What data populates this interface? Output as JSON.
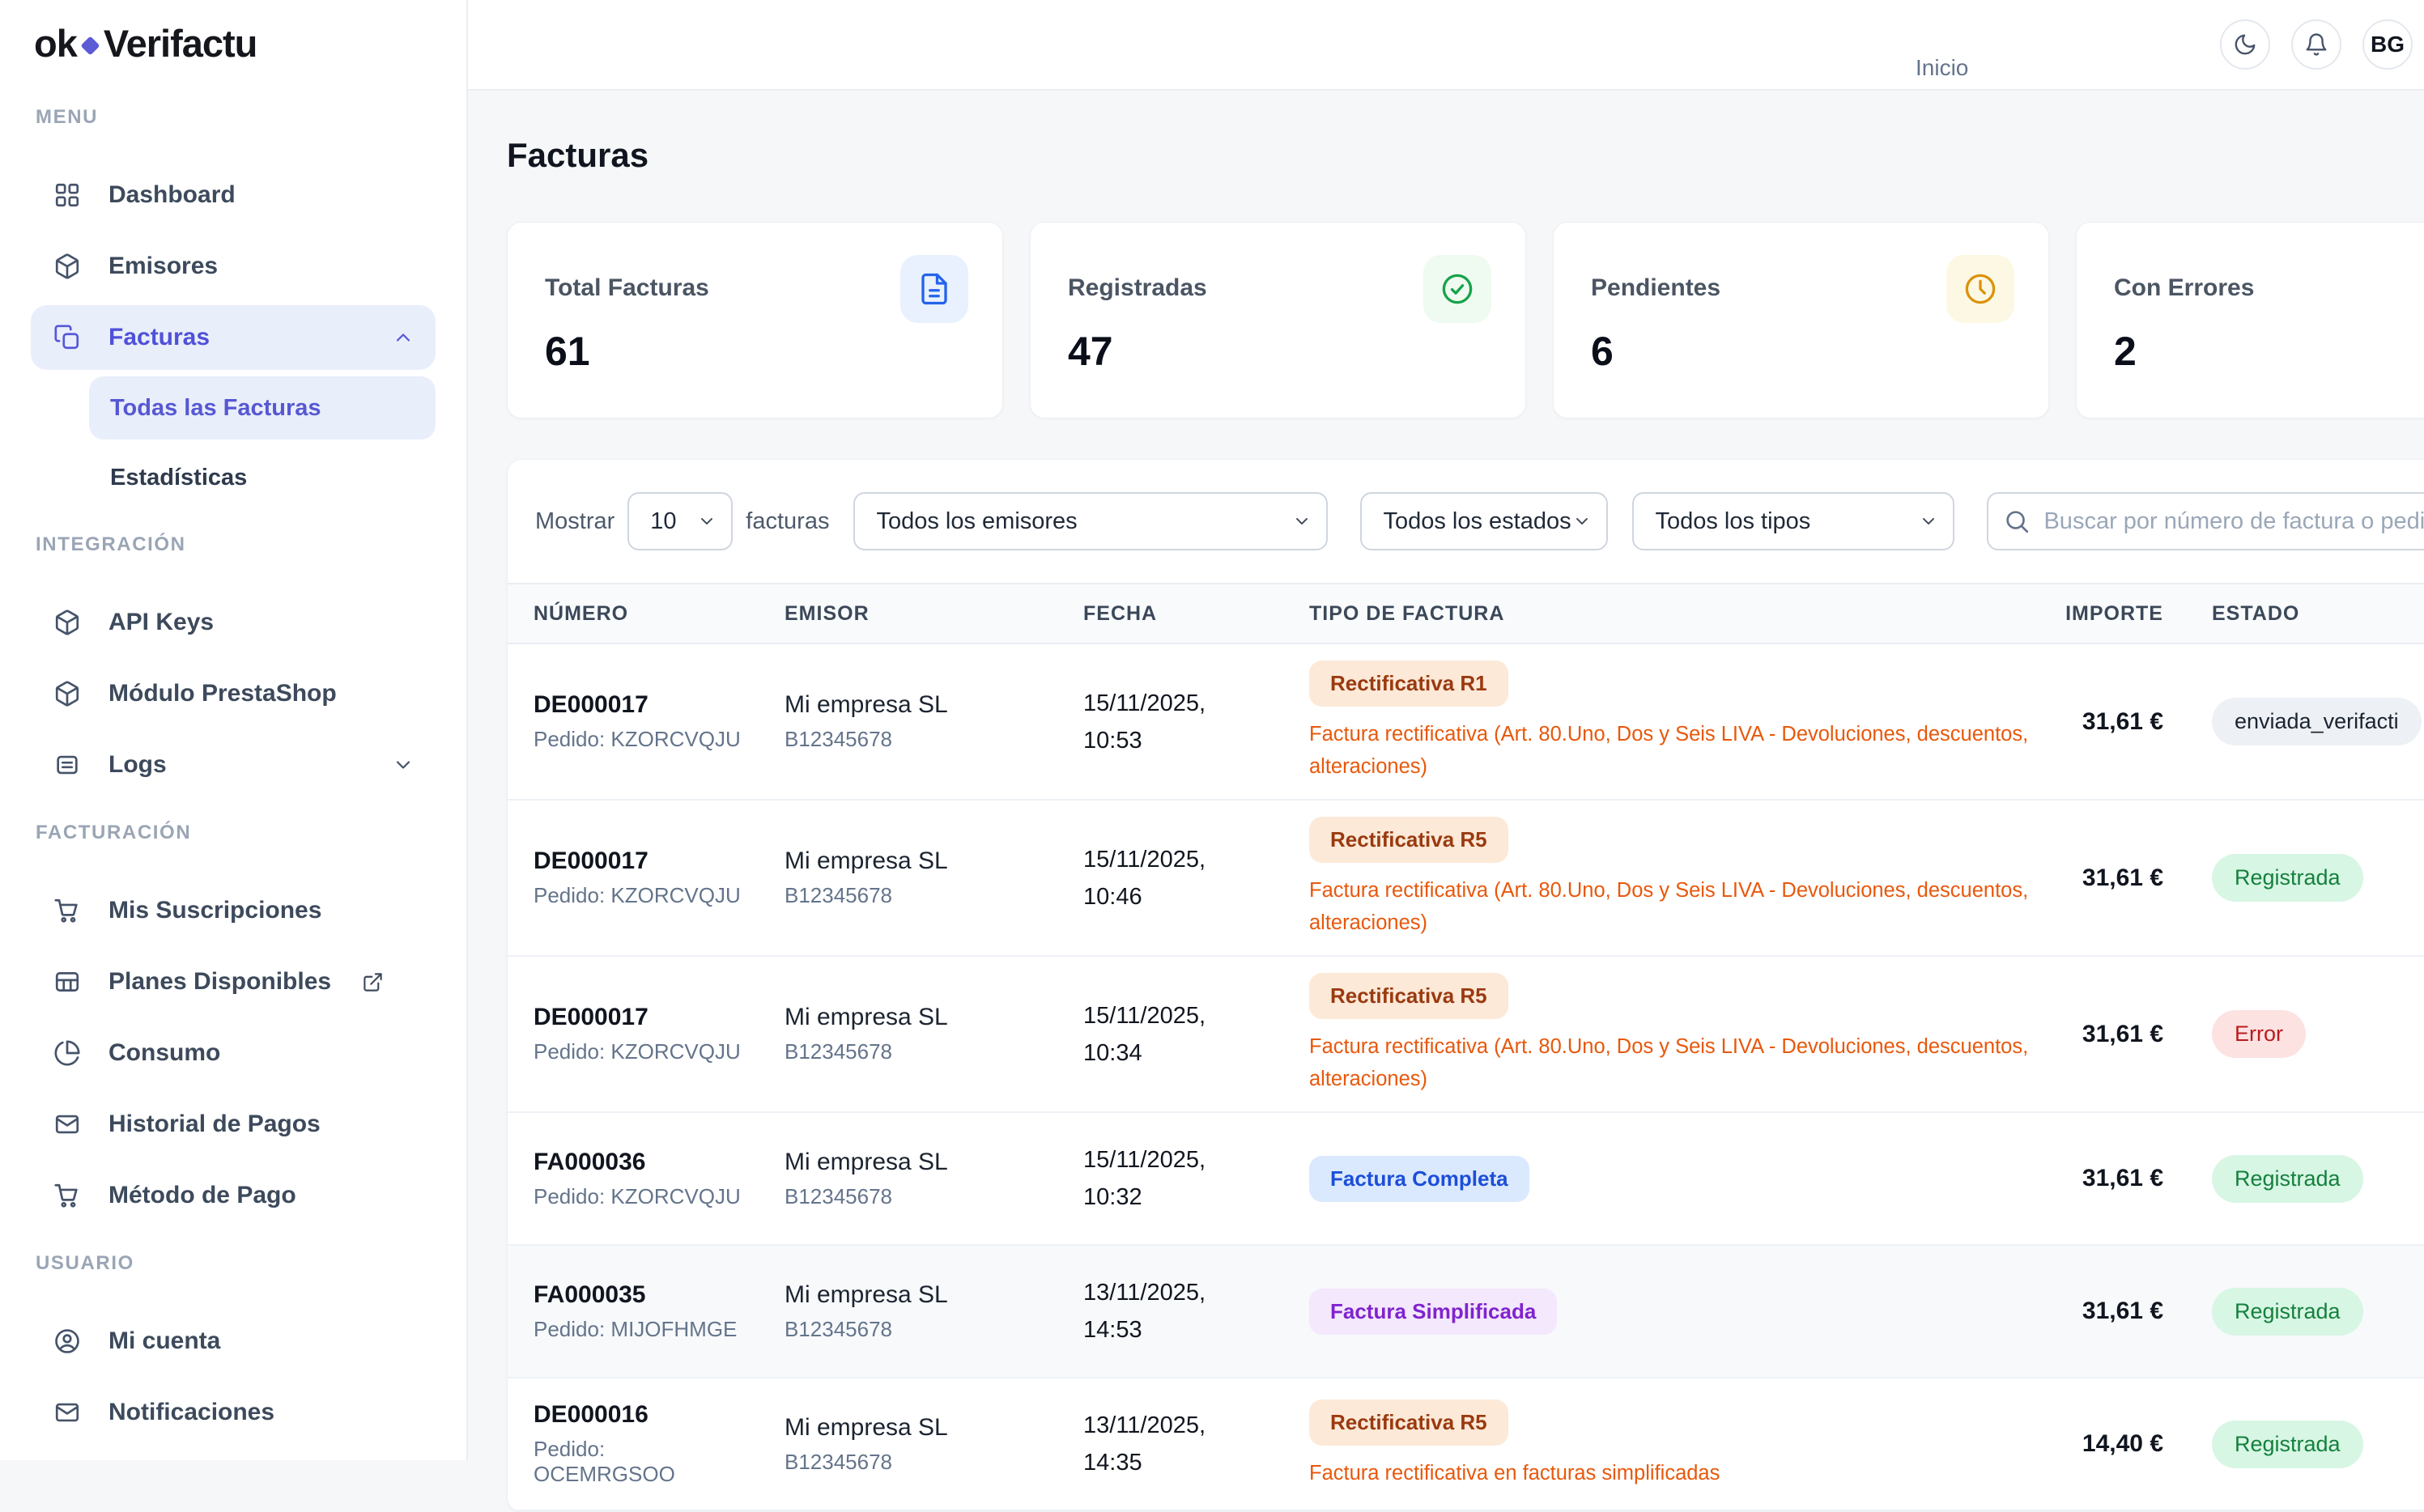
{
  "brand": {
    "logo_ok": "ok",
    "logo_rest": "Verifactu"
  },
  "header": {
    "breadcrumb": "Inicio",
    "avatar": "BG"
  },
  "page": {
    "title": "Facturas"
  },
  "theme": {
    "accent": "#5558d9",
    "sidebar_active_bg": "#e9eefb",
    "badge_variants": {
      "orange": {
        "bg": "#fce9d8",
        "fg": "#9a3a10"
      },
      "blue": {
        "bg": "#dbe9fe",
        "fg": "#1d4ed8"
      },
      "purple": {
        "bg": "#f4e8fd",
        "fg": "#8023ce"
      },
      "neutral": {
        "bg": "#edf0f5",
        "fg": "#1b2430"
      },
      "green": {
        "bg": "#d7f6e4",
        "fg": "#15803d"
      },
      "red": {
        "bg": "#fde2e2",
        "fg": "#b91c1c"
      }
    }
  },
  "sidebar": {
    "sections": [
      {
        "label": "MENU",
        "items": [
          {
            "label": "Dashboard",
            "icon": "grid"
          },
          {
            "label": "Emisores",
            "icon": "package"
          },
          {
            "label": "Facturas",
            "icon": "copy",
            "active": true,
            "chevron": "up",
            "children": [
              {
                "label": "Todas las Facturas",
                "active": true
              },
              {
                "label": "Estadísticas"
              }
            ]
          }
        ]
      },
      {
        "label": "INTEGRACIÓN",
        "items": [
          {
            "label": "API Keys",
            "icon": "package"
          },
          {
            "label": "Módulo PrestaShop",
            "icon": "package"
          },
          {
            "label": "Logs",
            "icon": "doc-lines",
            "chevron": "down"
          }
        ]
      },
      {
        "label": "FACTURACIÓN",
        "items": [
          {
            "label": "Mis Suscripciones",
            "icon": "cart"
          },
          {
            "label": "Planes Disponibles",
            "icon": "table",
            "external": true
          },
          {
            "label": "Consumo",
            "icon": "pie"
          },
          {
            "label": "Historial de Pagos",
            "icon": "mail"
          },
          {
            "label": "Método de Pago",
            "icon": "cart"
          }
        ]
      },
      {
        "label": "USUARIO",
        "items": [
          {
            "label": "Mi cuenta",
            "icon": "user"
          },
          {
            "label": "Notificaciones",
            "icon": "mail"
          }
        ]
      }
    ]
  },
  "stats": [
    {
      "label": "Total Facturas",
      "value": "61",
      "icon": "document",
      "icon_color": "#2563eb",
      "icon_bg": "#e8f1fd"
    },
    {
      "label": "Registradas",
      "value": "47",
      "icon": "check-circle",
      "icon_color": "#16a34a",
      "icon_bg": "#effaf1"
    },
    {
      "label": "Pendientes",
      "value": "6",
      "icon": "clock",
      "icon_color": "#d9930d",
      "icon_bg": "#fdf8e3"
    },
    {
      "label": "Con Errores",
      "value": "2",
      "icon": "alert-circle",
      "icon_color": "#dc2626",
      "icon_bg": "#fdeaea"
    }
  ],
  "filters": {
    "show_label": "Mostrar",
    "show_value": "10",
    "show_suffix": "facturas",
    "emisores": "Todos los emisores",
    "estados": "Todos los estados",
    "tipos": "Todos los tipos",
    "search_placeholder": "Buscar por número de factura o pedido"
  },
  "table": {
    "columns": [
      "NÚMERO",
      "EMISOR",
      "FECHA",
      "TIPO DE FACTURA",
      "IMPORTE",
      "ESTADO"
    ],
    "rows": [
      {
        "numero": "DE000017",
        "pedido": "Pedido: KZORCVQJU",
        "emisor": "Mi empresa SL",
        "nif": "B12345678",
        "fecha": "15/11/2025,",
        "hora": "10:53",
        "tipo": {
          "label": "Rectificativa R1",
          "variant": "orange"
        },
        "tipo_desc": "Factura rectificativa (Art. 80.Uno, Dos y Seis LIVA - Devoluciones, descuentos, alteraciones)",
        "importe": "31,61 €",
        "estado": {
          "label": "enviada_verifacti",
          "variant": "neutral"
        }
      },
      {
        "numero": "DE000017",
        "pedido": "Pedido: KZORCVQJU",
        "emisor": "Mi empresa SL",
        "nif": "B12345678",
        "fecha": "15/11/2025,",
        "hora": "10:46",
        "tipo": {
          "label": "Rectificativa R5",
          "variant": "orange"
        },
        "tipo_desc": "Factura rectificativa (Art. 80.Uno, Dos y Seis LIVA - Devoluciones, descuentos, alteraciones)",
        "importe": "31,61 €",
        "estado": {
          "label": "Registrada",
          "variant": "green"
        }
      },
      {
        "numero": "DE000017",
        "pedido": "Pedido: KZORCVQJU",
        "emisor": "Mi empresa SL",
        "nif": "B12345678",
        "fecha": "15/11/2025,",
        "hora": "10:34",
        "tipo": {
          "label": "Rectificativa R5",
          "variant": "orange"
        },
        "tipo_desc": "Factura rectificativa (Art. 80.Uno, Dos y Seis LIVA - Devoluciones, descuentos, alteraciones)",
        "importe": "31,61 €",
        "estado": {
          "label": "Error",
          "variant": "red"
        }
      },
      {
        "numero": "FA000036",
        "pedido": "Pedido: KZORCVQJU",
        "emisor": "Mi empresa SL",
        "nif": "B12345678",
        "fecha": "15/11/2025,",
        "hora": "10:32",
        "tipo": {
          "label": "Factura Completa",
          "variant": "blue"
        },
        "tipo_desc": "",
        "importe": "31,61 €",
        "estado": {
          "label": "Registrada",
          "variant": "green"
        }
      },
      {
        "numero": "FA000035",
        "pedido": "Pedido: MIJOFHMGE",
        "emisor": "Mi empresa SL",
        "nif": "B12345678",
        "fecha": "13/11/2025,",
        "hora": "14:53",
        "highlight": true,
        "tipo": {
          "label": "Factura Simplificada",
          "variant": "purple"
        },
        "tipo_desc": "",
        "importe": "31,61 €",
        "estado": {
          "label": "Registrada",
          "variant": "green"
        }
      },
      {
        "numero": "DE000016",
        "pedido": "Pedido:\nOCEMRGSOO",
        "emisor": "Mi empresa SL",
        "nif": "B12345678",
        "fecha": "13/11/2025,",
        "hora": "14:35",
        "tipo": {
          "label": "Rectificativa R5",
          "variant": "orange"
        },
        "tipo_desc": "Factura rectificativa en facturas simplificadas",
        "importe": "14,40 €",
        "estado": {
          "label": "Registrada",
          "variant": "green"
        }
      }
    ]
  }
}
